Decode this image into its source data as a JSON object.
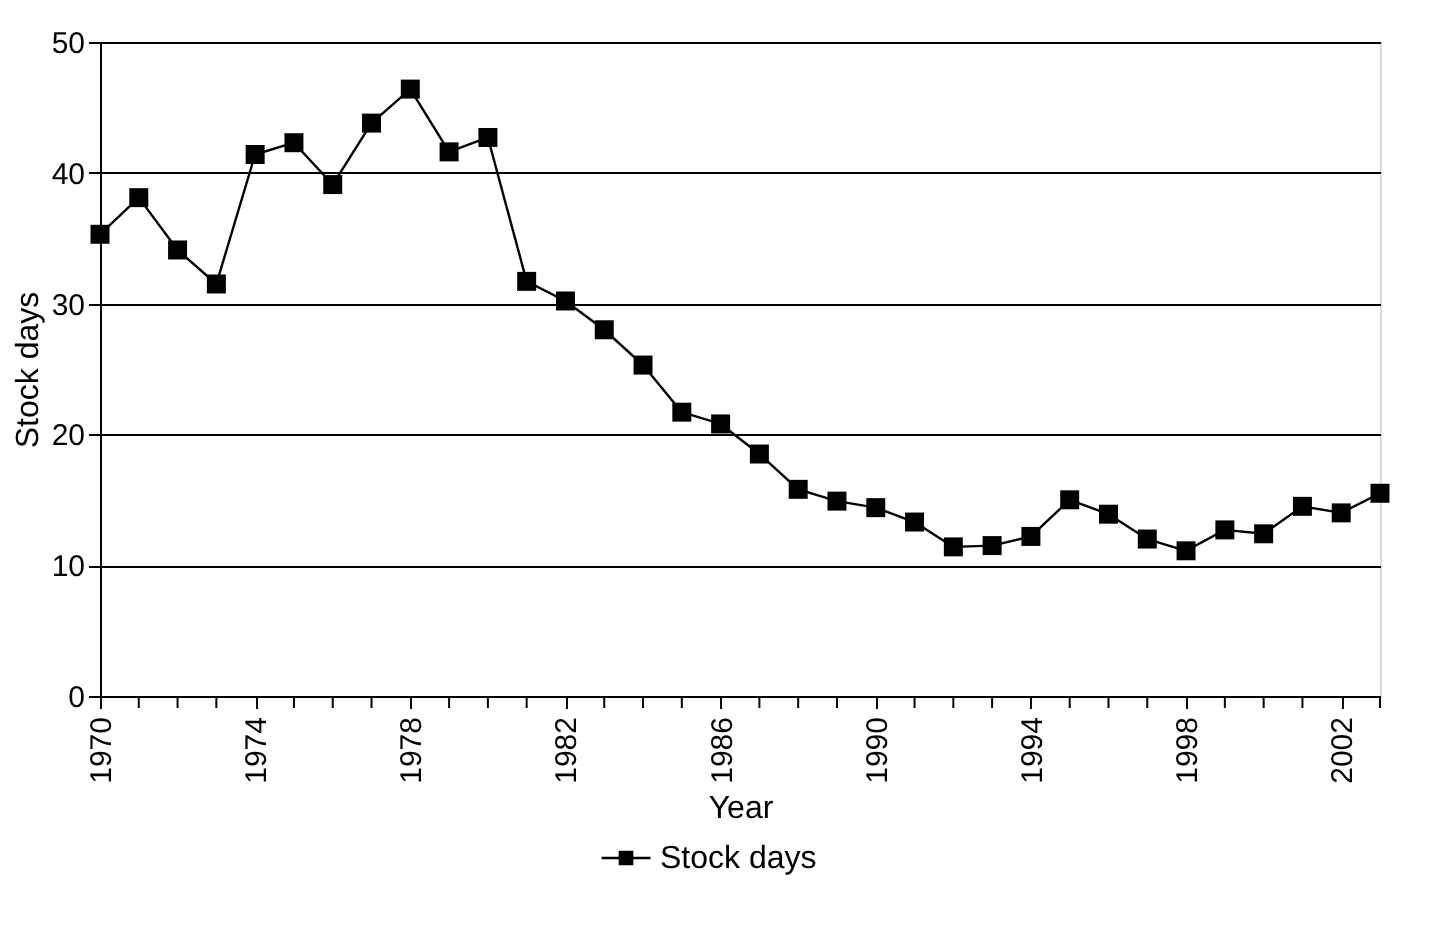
{
  "chart_data": {
    "type": "line",
    "xlabel": "Year",
    "ylabel": "Stock days",
    "x": [
      1970,
      1971,
      1972,
      1973,
      1974,
      1975,
      1976,
      1977,
      1978,
      1979,
      1980,
      1981,
      1982,
      1983,
      1984,
      1985,
      1986,
      1987,
      1988,
      1989,
      1990,
      1991,
      1992,
      1993,
      1994,
      1995,
      1996,
      1997,
      1998,
      1999,
      2000,
      2001,
      2002,
      2003
    ],
    "series": [
      {
        "name": "Stock days",
        "color": "#000000",
        "values": [
          35.3,
          38.1,
          34.1,
          31.5,
          41.4,
          42.3,
          39.1,
          43.8,
          46.4,
          41.6,
          42.7,
          31.7,
          30.2,
          28.0,
          25.3,
          21.7,
          20.8,
          18.5,
          15.8,
          14.9,
          14.4,
          13.3,
          11.4,
          11.5,
          12.2,
          15.0,
          13.9,
          12.0,
          11.1,
          12.7,
          12.4,
          14.5,
          14.0,
          15.5
        ]
      }
    ],
    "xlim": [
      1970,
      2003
    ],
    "xticks": [
      1970,
      {
        "value": 1971,
        "label": null
      },
      {
        "value": 1972,
        "label": null
      },
      {
        "value": 1973,
        "label": null
      },
      1974,
      {
        "value": 1975,
        "label": null
      },
      {
        "value": 1976,
        "label": null
      },
      {
        "value": 1977,
        "label": null
      },
      1978,
      {
        "value": 1979,
        "label": null
      },
      {
        "value": 1980,
        "label": null
      },
      {
        "value": 1981,
        "label": null
      },
      1982,
      {
        "value": 1983,
        "label": null
      },
      {
        "value": 1984,
        "label": null
      },
      {
        "value": 1985,
        "label": null
      },
      1986,
      {
        "value": 1987,
        "label": null
      },
      {
        "value": 1988,
        "label": null
      },
      {
        "value": 1989,
        "label": null
      },
      1990,
      {
        "value": 1991,
        "label": null
      },
      {
        "value": 1992,
        "label": null
      },
      {
        "value": 1993,
        "label": null
      },
      1994,
      {
        "value": 1995,
        "label": null
      },
      {
        "value": 1996,
        "label": null
      },
      {
        "value": 1997,
        "label": null
      },
      1998,
      {
        "value": 1999,
        "label": null
      },
      {
        "value": 2000,
        "label": null
      },
      {
        "value": 2001,
        "label": null
      },
      2002,
      {
        "value": 2003,
        "label": null
      }
    ],
    "ylim": [
      0,
      50
    ],
    "yticks": [
      0,
      10,
      20,
      30,
      40,
      50
    ],
    "grid": "y",
    "legend": "bottom",
    "marker": "square",
    "line_style": "solid"
  }
}
